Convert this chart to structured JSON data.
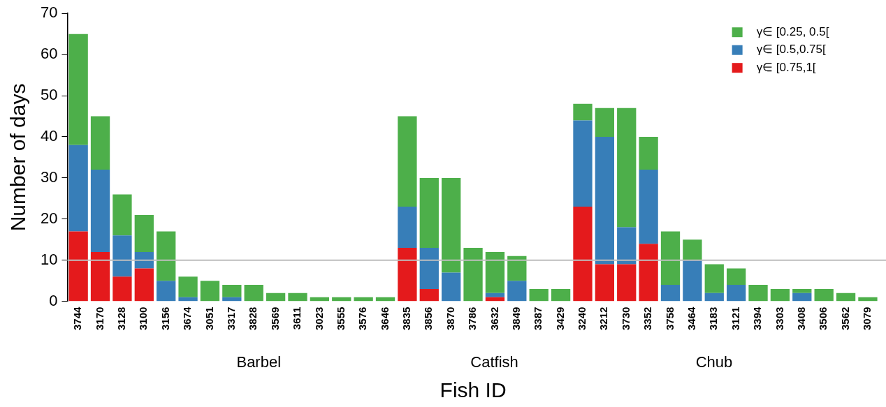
{
  "chart_data": {
    "type": "bar",
    "stacked": true,
    "xlabel": "Fish ID",
    "ylabel": "Number of days",
    "categories": [
      "3744",
      "3170",
      "3128",
      "3100",
      "3156",
      "3674",
      "3051",
      "3317",
      "3828",
      "3569",
      "3611",
      "3023",
      "3555",
      "3576",
      "3646",
      "3835",
      "3856",
      "3870",
      "3786",
      "3632",
      "3849",
      "3387",
      "3429",
      "3240",
      "3212",
      "3730",
      "3352",
      "3758",
      "3464",
      "3183",
      "3121",
      "3394",
      "3303",
      "3408",
      "3506",
      "3562",
      "3079"
    ],
    "series": [
      {
        "name": "γ∈ [0.75,1[",
        "color": "#e41a1c",
        "values": [
          17,
          12,
          6,
          8,
          0,
          0,
          0,
          0,
          0,
          0,
          0,
          0,
          0,
          0,
          0,
          13,
          3,
          0,
          0,
          1,
          0,
          0,
          0,
          23,
          9,
          9,
          14,
          0,
          0,
          0,
          0,
          0,
          0,
          0,
          0,
          0,
          0
        ]
      },
      {
        "name": "γ∈ [0.5,0.75[",
        "color": "#377eb8",
        "values": [
          21,
          20,
          10,
          4,
          5,
          1,
          0,
          1,
          0,
          0,
          0,
          0,
          0,
          0,
          0,
          10,
          10,
          7,
          0,
          1,
          5,
          0,
          0,
          21,
          31,
          9,
          18,
          4,
          10,
          2,
          4,
          0,
          0,
          2,
          0,
          0,
          0
        ]
      },
      {
        "name": "γ∈ [0.25, 0.5[",
        "color": "#4daf4a",
        "values": [
          27,
          13,
          10,
          9,
          12,
          5,
          5,
          3,
          4,
          2,
          2,
          1,
          1,
          1,
          1,
          22,
          17,
          23,
          13,
          10,
          6,
          3,
          3,
          4,
          7,
          29,
          8,
          13,
          5,
          7,
          4,
          4,
          3,
          1,
          3,
          2,
          1
        ]
      }
    ],
    "ylim": [
      0,
      70
    ],
    "yticks": [
      0,
      10,
      20,
      30,
      40,
      50,
      60,
      70
    ],
    "grid": false,
    "legend": "top right",
    "ref_lines": [
      {
        "axis": "y",
        "value": 10,
        "color": "#bebebe"
      }
    ],
    "annotations": [
      "Barbel",
      "Catfish",
      "Chub"
    ]
  }
}
